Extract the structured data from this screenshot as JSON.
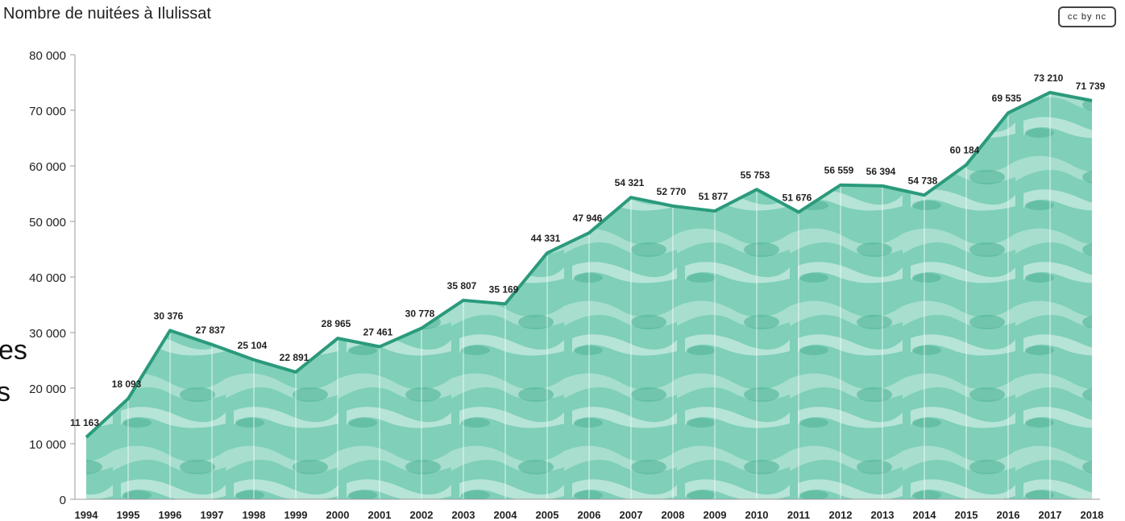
{
  "chart_data": {
    "type": "area",
    "title": "Nombre de nuitées à Ilulissat",
    "x": [
      "1994",
      "1995",
      "1996",
      "1997",
      "1998",
      "1999",
      "2000",
      "2001",
      "2002",
      "2003",
      "2004",
      "2005",
      "2006",
      "2007",
      "2008",
      "2009",
      "2010",
      "2011",
      "2012",
      "2013",
      "2014",
      "2015",
      "2016",
      "2017",
      "2018"
    ],
    "values": [
      11163,
      18093,
      30376,
      27837,
      25104,
      22891,
      28965,
      27461,
      30778,
      35807,
      35169,
      44331,
      47946,
      54321,
      52770,
      51877,
      55753,
      51676,
      56559,
      56394,
      54738,
      60184,
      69535,
      73210,
      71739
    ],
    "data_labels": [
      "11 163",
      "18 093",
      "30 376",
      "27 837",
      "25 104",
      "22 891",
      "28 965",
      "27 461",
      "30 778",
      "35 807",
      "35 169",
      "44 331",
      "47 946",
      "54 321",
      "52 770",
      "51 877",
      "55 753",
      "51 676",
      "56 559",
      "56 394",
      "54 738",
      "60 184",
      "69 535",
      "73 210",
      "71 739"
    ],
    "yticks": [
      "0",
      "10 000",
      "20 000",
      "30 000",
      "40 000",
      "50 000",
      "60 000",
      "70 000",
      "80 000"
    ],
    "ylim": [
      0,
      80000
    ],
    "grid": false,
    "colors": {
      "line": "#2b9a7c",
      "fill": "#6cc6ae"
    }
  },
  "badge_text": "cc by nc",
  "overflow_text_1": "es",
  "overflow_text_2": "s"
}
